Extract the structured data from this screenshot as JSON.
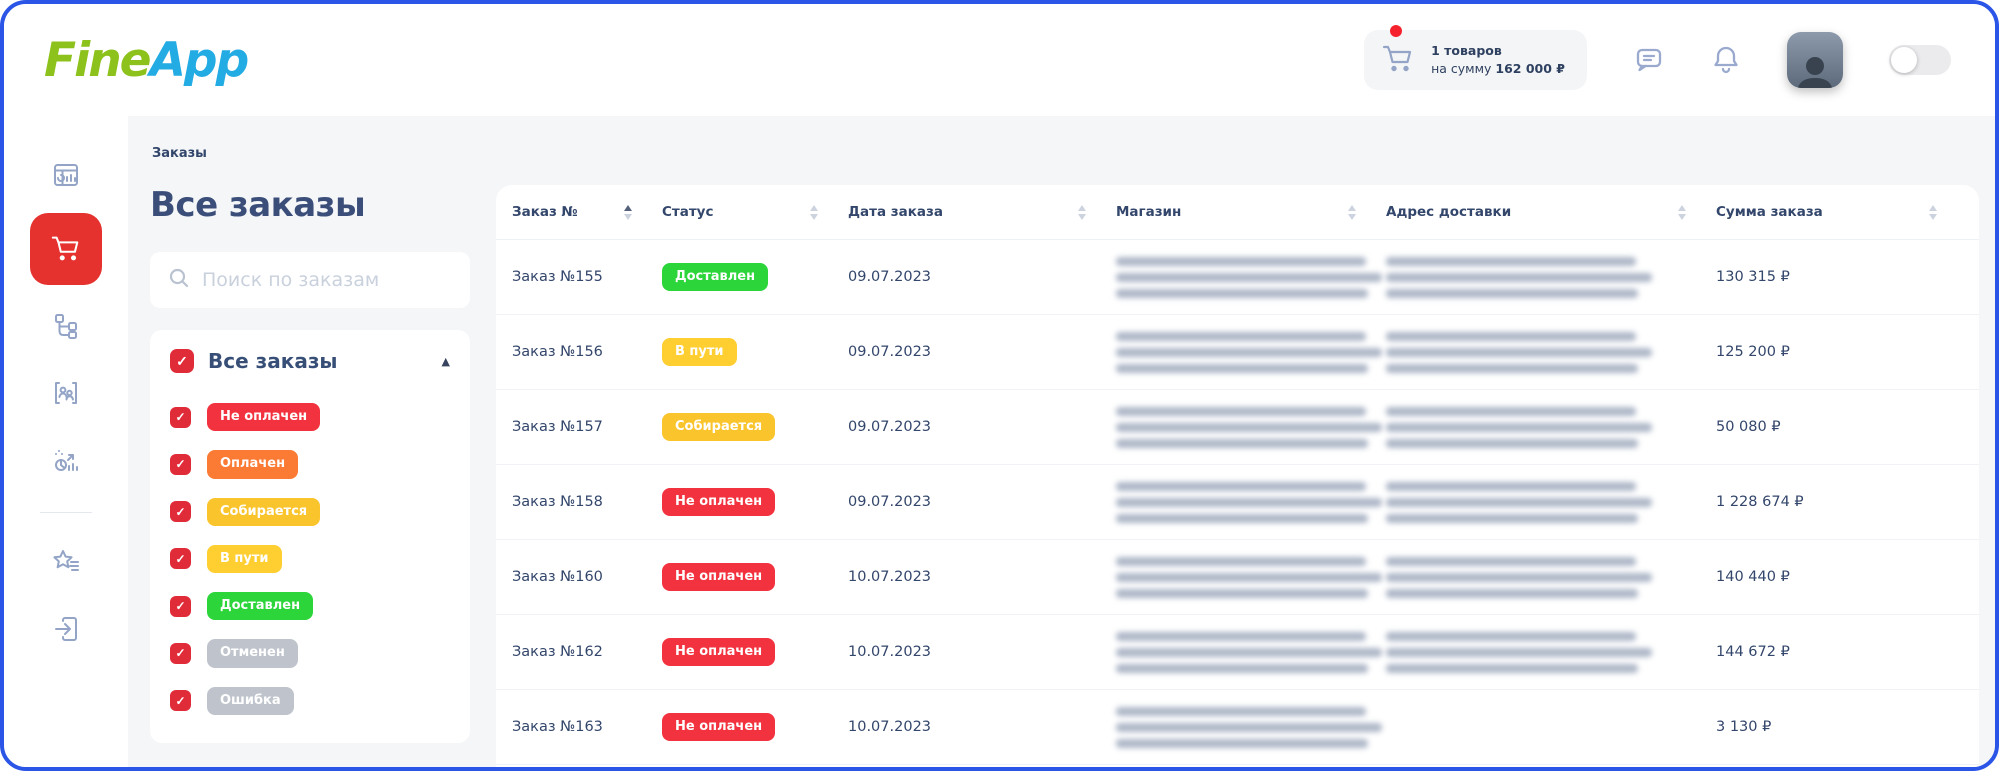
{
  "colors": {
    "accent_red": "#e5322e",
    "frame_blue": "#2b55e6",
    "status_red": "#f2333f",
    "status_orange": "#fb7a34",
    "status_amber": "#fac42d",
    "status_yellow": "#ffce31",
    "status_green": "#2bd53a",
    "status_gray": "#bfc4cc"
  },
  "header": {
    "logo_part1": "Fine",
    "logo_part2": "App",
    "cart": {
      "count_line": "1 товаров",
      "sum_prefix": "на сумму ",
      "sum_value": "162 000 ₽"
    },
    "icons": [
      "cart-icon",
      "chat-icon",
      "bell-icon",
      "avatar",
      "theme-toggle"
    ]
  },
  "sidebar": {
    "active": "orders",
    "items": [
      {
        "name": "dashboard",
        "icon": "dashboard-icon"
      },
      {
        "name": "orders",
        "icon": "cart-icon"
      },
      {
        "name": "structure",
        "icon": "hierarchy-icon"
      },
      {
        "name": "clients",
        "icon": "users-icon"
      },
      {
        "name": "analytics",
        "icon": "analytics-icon"
      },
      {
        "name": "favorites",
        "icon": "star-list-icon"
      },
      {
        "name": "logout",
        "icon": "exit-icon"
      }
    ]
  },
  "page": {
    "breadcrumb": "Заказы",
    "title": "Все заказы",
    "search_placeholder": "Поиск по заказам"
  },
  "filters": {
    "all_label": "Все заказы",
    "all_checked": true,
    "collapse_state": "expanded",
    "items": [
      {
        "label": "Не оплачен",
        "color": "#f2333f",
        "checked": true
      },
      {
        "label": "Оплачен",
        "color": "#fb7a34",
        "checked": true
      },
      {
        "label": "Собирается",
        "color": "#fac42d",
        "checked": true
      },
      {
        "label": "В пути",
        "color": "#ffce31",
        "checked": true
      },
      {
        "label": "Доставлен",
        "color": "#2bd53a",
        "checked": true
      },
      {
        "label": "Отменен",
        "color": "#bfc4cc",
        "checked": true
      },
      {
        "label": "Ошибка",
        "color": "#bfc4cc",
        "checked": true
      }
    ]
  },
  "table": {
    "columns": [
      {
        "label": "Заказ №",
        "sorted": "asc"
      },
      {
        "label": "Статус",
        "sorted": "none"
      },
      {
        "label": "Дата заказа",
        "sorted": "none"
      },
      {
        "label": "Магазин",
        "sorted": "none"
      },
      {
        "label": "Адрес доставки",
        "sorted": "none"
      },
      {
        "label": "Сумма заказа",
        "sorted": "none"
      }
    ],
    "rows": [
      {
        "order": "Заказ №155",
        "status": "Доставлен",
        "status_color": "#2bd53a",
        "date": "09.07.2023",
        "store_redacted_lines": 3,
        "address_redacted_lines": 3,
        "sum": "130 315 ₽"
      },
      {
        "order": "Заказ №156",
        "status": "В пути",
        "status_color": "#ffce31",
        "date": "09.07.2023",
        "store_redacted_lines": 3,
        "address_redacted_lines": 3,
        "sum": "125 200 ₽"
      },
      {
        "order": "Заказ №157",
        "status": "Собирается",
        "status_color": "#fac42d",
        "date": "09.07.2023",
        "store_redacted_lines": 3,
        "address_redacted_lines": 3,
        "sum": "50 080 ₽"
      },
      {
        "order": "Заказ №158",
        "status": "Не оплачен",
        "status_color": "#f2333f",
        "date": "09.07.2023",
        "store_redacted_lines": 3,
        "address_redacted_lines": 3,
        "sum": "1 228 674 ₽"
      },
      {
        "order": "Заказ №160",
        "status": "Не оплачен",
        "status_color": "#f2333f",
        "date": "10.07.2023",
        "store_redacted_lines": 3,
        "address_redacted_lines": 3,
        "sum": "140 440 ₽"
      },
      {
        "order": "Заказ №162",
        "status": "Не оплачен",
        "status_color": "#f2333f",
        "date": "10.07.2023",
        "store_redacted_lines": 3,
        "address_redacted_lines": 3,
        "sum": "144 672 ₽"
      },
      {
        "order": "Заказ №163",
        "status": "Не оплачен",
        "status_color": "#f2333f",
        "date": "10.07.2023",
        "store_redacted_lines": 3,
        "address_redacted_lines": 0,
        "sum": "3 130 ₽"
      }
    ]
  }
}
